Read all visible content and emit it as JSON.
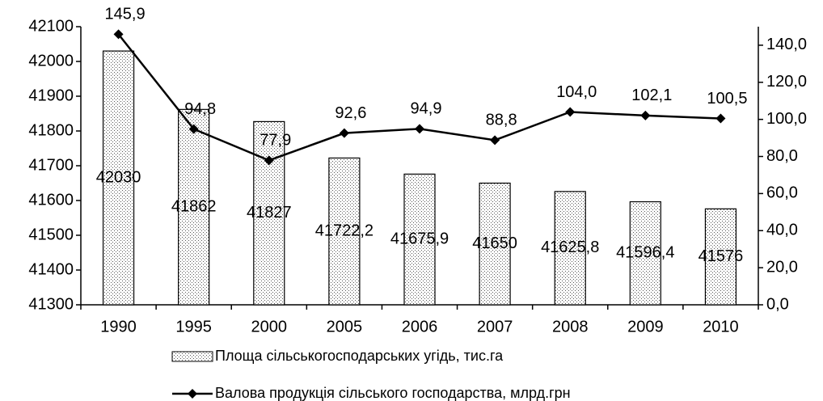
{
  "chart_data": {
    "type": "bar_line",
    "categories": [
      "1990",
      "1995",
      "2000",
      "2005",
      "2006",
      "2007",
      "2008",
      "2009",
      "2010"
    ],
    "series": [
      {
        "name": "Площа сільськогосподарських угідь, тис.га",
        "type": "bar",
        "axis": "y",
        "values": [
          42030,
          41862,
          41827,
          41722.2,
          41675.9,
          41650,
          41625.8,
          41596.4,
          41576
        ],
        "value_labels": [
          "42030",
          "41862",
          "41827",
          "41722,2",
          "41675,9",
          "41650",
          "41625,8",
          "41596,4",
          "41576"
        ]
      },
      {
        "name": "Валова продукція сільського господарства, млрд.грн",
        "type": "line",
        "axis": "y2",
        "color": "#000000",
        "values": [
          145.9,
          94.8,
          77.9,
          92.6,
          94.9,
          88.8,
          104.0,
          102.1,
          100.5
        ],
        "value_labels": [
          "145,9",
          "94,8",
          "77,9",
          "92,6",
          "94,9",
          "88,8",
          "104,0",
          "102,1",
          "100,5"
        ]
      }
    ],
    "ylim": [
      41300,
      42100
    ],
    "yticks": [
      41300,
      41400,
      41500,
      41600,
      41700,
      41800,
      41900,
      42000,
      42100
    ],
    "y2lim": [
      0,
      150
    ],
    "y2ticks": [
      {
        "value": 0,
        "label": "0,0"
      },
      {
        "value": 20,
        "label": "20,0"
      },
      {
        "value": 40,
        "label": "40,0"
      },
      {
        "value": 60,
        "label": "60,0"
      },
      {
        "value": 80,
        "label": "80,0"
      },
      {
        "value": 100,
        "label": "100,0"
      },
      {
        "value": 120,
        "label": "120,0"
      },
      {
        "value": 140,
        "label": "140,0"
      }
    ],
    "grid": false,
    "legend": "bottom"
  }
}
